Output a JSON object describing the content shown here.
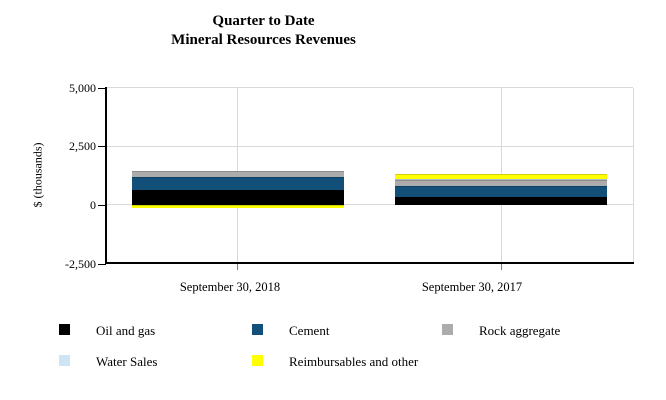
{
  "title": {
    "line1": "Quarter to Date",
    "line2": "Mineral Resources Revenues"
  },
  "y_axis": {
    "label": "$ (thousands)",
    "ticks": [
      "5,000",
      "2,500",
      "0",
      "-2,500"
    ]
  },
  "chart_data": {
    "type": "bar",
    "stacked": true,
    "title": "Quarter to Date Mineral Resources Revenues",
    "ylabel": "$ (thousands)",
    "categories": [
      "September 30, 2018",
      "September 30, 2017"
    ],
    "series": [
      {
        "name": "Oil and gas",
        "color": "#000000",
        "values": [
          620,
          350
        ]
      },
      {
        "name": "Cement",
        "color": "#124F79",
        "values": [
          550,
          450
        ]
      },
      {
        "name": "Rock aggregate",
        "color": "#ACACAC",
        "values": [
          280,
          250
        ]
      },
      {
        "name": "Water Sales",
        "color": "#CDE4F5",
        "values": [
          0,
          50
        ]
      },
      {
        "name": "Reimbursables and other",
        "color": "#FFFF00",
        "values": [
          -140,
          200
        ]
      }
    ],
    "ylim": [
      -2500,
      5000
    ],
    "ytick_values": [
      5000,
      2500,
      0,
      -2500
    ],
    "grid": true,
    "gridline_color": "#d9d9d9",
    "legend_position": "bottom"
  }
}
